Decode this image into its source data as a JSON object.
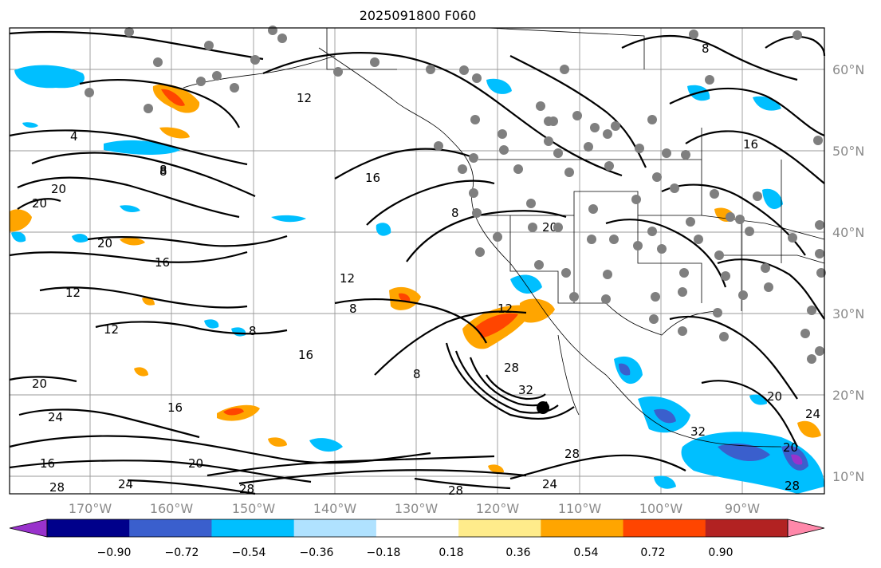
{
  "title": "2025091800 F060",
  "lat_labels": [
    "60°N",
    "50°N",
    "40°N",
    "30°N",
    "20°N",
    "10°N"
  ],
  "lon_labels": [
    "170°W",
    "160°W",
    "150°W",
    "140°W",
    "130°W",
    "120°W",
    "110°W",
    "100°W",
    "90°W"
  ],
  "colorbar": {
    "colors": [
      "#9932cc",
      "#00008b",
      "#3a5fcd",
      "#00bfff",
      "#b0e2ff",
      "#ffffff",
      "#ffec8b",
      "#ffa500",
      "#ff4500",
      "#b22222",
      "#ff88aa"
    ],
    "tick_labels": [
      "−0.90",
      "−0.72",
      "−0.54",
      "−0.36",
      "−0.18",
      "0.18",
      "0.36",
      "0.54",
      "0.72",
      "0.90"
    ]
  },
  "contour_labels": [
    "12",
    "4",
    "8",
    "20",
    "20",
    "20",
    "16",
    "12",
    "12",
    "8",
    "16",
    "20",
    "8",
    "16",
    "24",
    "16",
    "20",
    "28",
    "24",
    "28",
    "32",
    "28",
    "28",
    "24",
    "28",
    "8",
    "8",
    "12",
    "16",
    "8",
    "12",
    "8",
    "20",
    "16",
    "32",
    "20",
    "24",
    "20",
    "28"
  ]
}
